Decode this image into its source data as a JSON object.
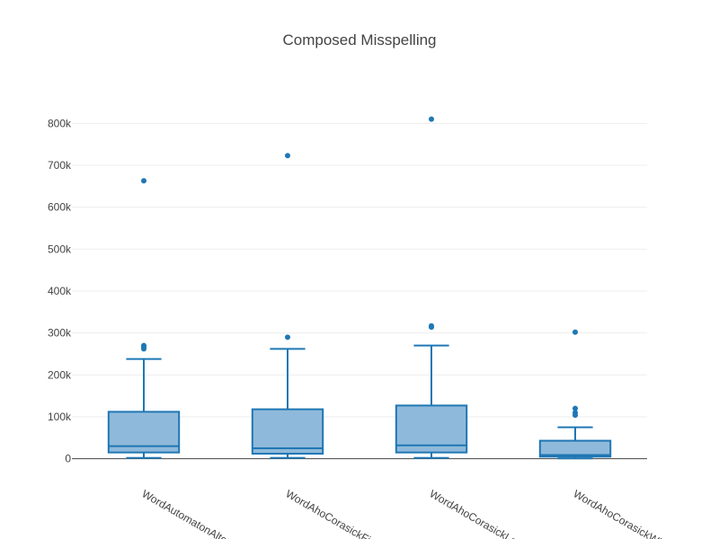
{
  "chart_data": {
    "type": "box",
    "title": "Composed Misspelling",
    "xlabel": "",
    "ylabel": "",
    "ylim": [
      -20000,
      880000
    ],
    "yticks": [
      0,
      100000,
      200000,
      300000,
      400000,
      500000,
      600000,
      700000,
      800000
    ],
    "ytick_labels": [
      "0",
      "100k",
      "200k",
      "300k",
      "400k",
      "500k",
      "600k",
      "700k",
      "800k"
    ],
    "grid": true,
    "legend": "none",
    "colors": {
      "line": "#1f77b4",
      "fill": "#8fb9da",
      "grid": "#eeeeee",
      "zeroline": "#444444",
      "text": "#444444"
    },
    "categories": [
      "WordAutomatonAlternation",
      "WordAhoCorasickFinder",
      "WordAhoCorasickLongest",
      "WordAhoCorasickWhole"
    ],
    "series": [
      {
        "category": "WordAutomatonAlternation",
        "min": 2000,
        "q1": 15000,
        "median": 30000,
        "q3": 112000,
        "max": 238000,
        "outliers": [
          262000,
          266000,
          270000,
          663000
        ]
      },
      {
        "category": "WordAhoCorasickFinder",
        "min": 2000,
        "q1": 12000,
        "median": 25000,
        "q3": 118000,
        "max": 262000,
        "outliers": [
          290000,
          723000
        ]
      },
      {
        "category": "WordAhoCorasickLongest",
        "min": 2000,
        "q1": 15000,
        "median": 32000,
        "q3": 127000,
        "max": 270000,
        "outliers": [
          314000,
          317000,
          810000
        ]
      },
      {
        "category": "WordAhoCorasickWhole",
        "min": 1000,
        "q1": 5000,
        "median": 9000,
        "q3": 43000,
        "max": 75000,
        "outliers": [
          104000,
          110000,
          120000,
          302000
        ]
      }
    ]
  }
}
